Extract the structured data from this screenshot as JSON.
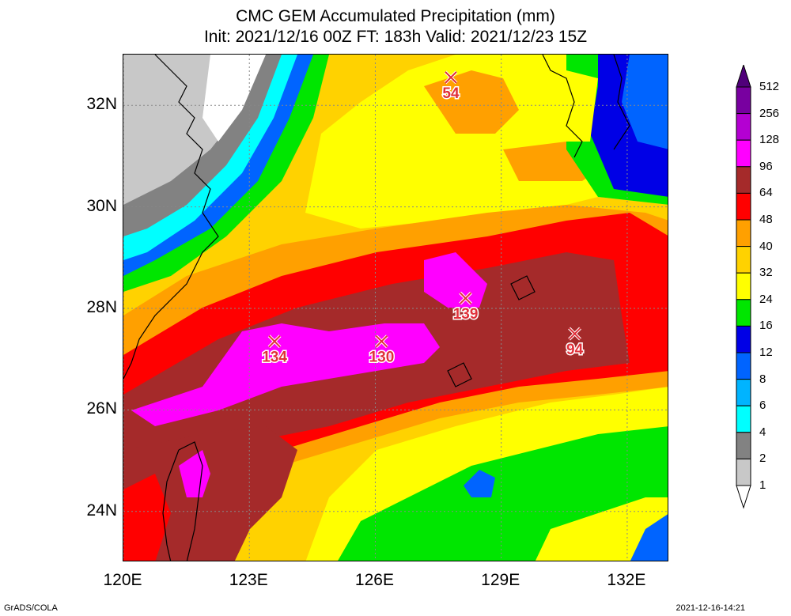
{
  "title": {
    "line1": "CMC GEM Accumulated Precipitation (mm)",
    "line2": "Init: 2021/12/16 00Z  FT: 183h  Valid: 2021/12/23 15Z"
  },
  "axes": {
    "lat_labels": [
      "32N",
      "30N",
      "28N",
      "26N",
      "24N"
    ],
    "lat_values": [
      32,
      30,
      28,
      26,
      24
    ],
    "lon_labels": [
      "120E",
      "123E",
      "126E",
      "129E",
      "132E"
    ],
    "lon_values": [
      120,
      123,
      126,
      129,
      132
    ],
    "lon_range": [
      120,
      133
    ],
    "lat_range": [
      23,
      33
    ]
  },
  "legend": {
    "levels": [
      "1",
      "2",
      "4",
      "6",
      "8",
      "12",
      "16",
      "24",
      "32",
      "40",
      "48",
      "64",
      "96",
      "128",
      "256",
      "512"
    ],
    "colors": [
      "#ffffff",
      "#c8c8c8",
      "#828282",
      "#00ffff",
      "#00b4ff",
      "#0064ff",
      "#0000e6",
      "#00e600",
      "#ffff00",
      "#ffd200",
      "#ffa000",
      "#ff0000",
      "#a52a2a",
      "#ff00ff",
      "#b400d2",
      "#7800a0",
      "#50007a"
    ]
  },
  "markers": [
    {
      "name": "marker-54",
      "label": "54",
      "lon": 127.8,
      "lat": 32.55
    },
    {
      "name": "marker-139",
      "label": "139",
      "lon": 128.15,
      "lat": 28.2
    },
    {
      "name": "marker-134",
      "label": "134",
      "lon": 123.6,
      "lat": 27.35
    },
    {
      "name": "marker-130",
      "label": "130",
      "lon": 126.15,
      "lat": 27.35
    },
    {
      "name": "marker-94",
      "label": "94",
      "lon": 130.75,
      "lat": 27.5
    }
  ],
  "footer": {
    "left": "GrADS/COLA",
    "right": "2021-12-16-14:21"
  }
}
